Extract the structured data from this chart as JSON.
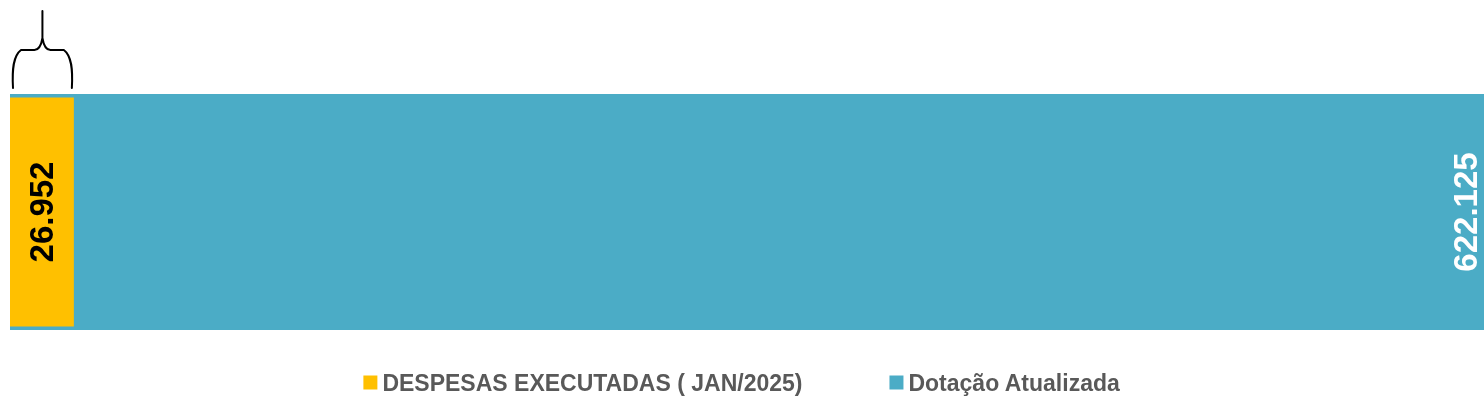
{
  "chart_data": {
    "type": "bar",
    "orientation": "horizontal",
    "categories": [
      null
    ],
    "series": [
      {
        "name": "DESPESAS EXECUTADAS ( JAN/2025)",
        "color": "#ffc000",
        "values": [
          26952
        ],
        "value_labels": [
          "26.952"
        ]
      },
      {
        "name": "Dotação Atualizada",
        "color": "#4bacc6",
        "values": [
          622125
        ],
        "value_labels": [
          "622.125"
        ]
      }
    ],
    "legend": "bottom"
  }
}
